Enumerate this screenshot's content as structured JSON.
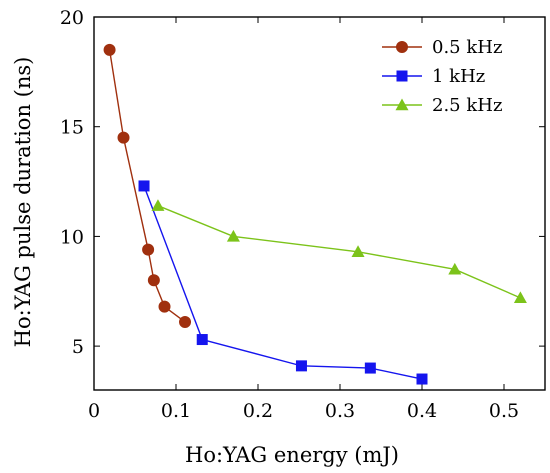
{
  "chart_data": {
    "type": "line",
    "xlabel": "Ho:YAG energy (mJ)",
    "ylabel": "Ho:YAG pulse duration (ns)",
    "xlim": [
      0,
      0.55
    ],
    "ylim": [
      3,
      20
    ],
    "xticks": [
      0,
      0.1,
      0.2,
      0.3,
      0.4,
      0.5
    ],
    "yticks": [
      5,
      10,
      15,
      20
    ],
    "legend_position": "top-right",
    "grid": false,
    "series": [
      {
        "name": "0.5 kHz",
        "color": "#A0300F",
        "marker": "circle",
        "x": [
          0.019,
          0.036,
          0.066,
          0.073,
          0.086,
          0.111
        ],
        "y": [
          18.5,
          14.5,
          9.4,
          8.0,
          6.8,
          6.1
        ]
      },
      {
        "name": "1 kHz",
        "color": "#1515EE",
        "marker": "square",
        "x": [
          0.061,
          0.132,
          0.253,
          0.337,
          0.4
        ],
        "y": [
          12.3,
          5.3,
          4.1,
          4.0,
          3.5
        ]
      },
      {
        "name": "2.5 kHz",
        "color": "#7CC31A",
        "marker": "triangle",
        "x": [
          0.078,
          0.17,
          0.322,
          0.44,
          0.52
        ],
        "y": [
          11.4,
          10.0,
          9.3,
          8.5,
          7.2
        ]
      }
    ]
  }
}
